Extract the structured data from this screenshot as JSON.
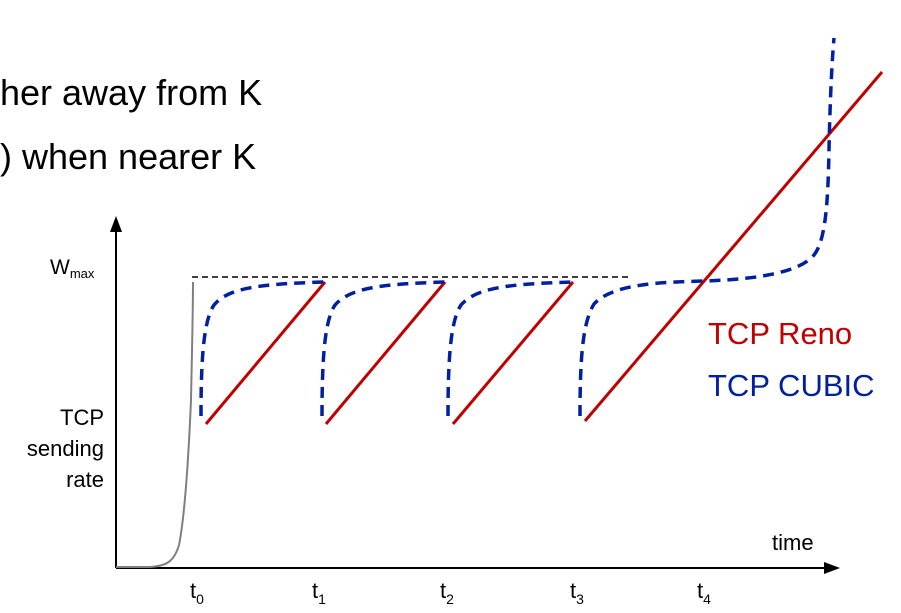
{
  "text": {
    "line1": "her away from K",
    "line2": ") when nearer K"
  },
  "axes": {
    "ylabel_lines": [
      "TCP",
      "sending",
      "rate"
    ],
    "wmax_base": "W",
    "wmax_sub": "max",
    "xlabel": "time",
    "ticks": [
      {
        "base": "t",
        "sub": "0"
      },
      {
        "base": "t",
        "sub": "1"
      },
      {
        "base": "t",
        "sub": "2"
      },
      {
        "base": "t",
        "sub": "3"
      },
      {
        "base": "t",
        "sub": "4"
      }
    ]
  },
  "legend": {
    "reno": {
      "label": "TCP Reno",
      "color": "#c00000"
    },
    "cubic": {
      "label": "TCP CUBIC",
      "color": "#00209f"
    }
  }
}
